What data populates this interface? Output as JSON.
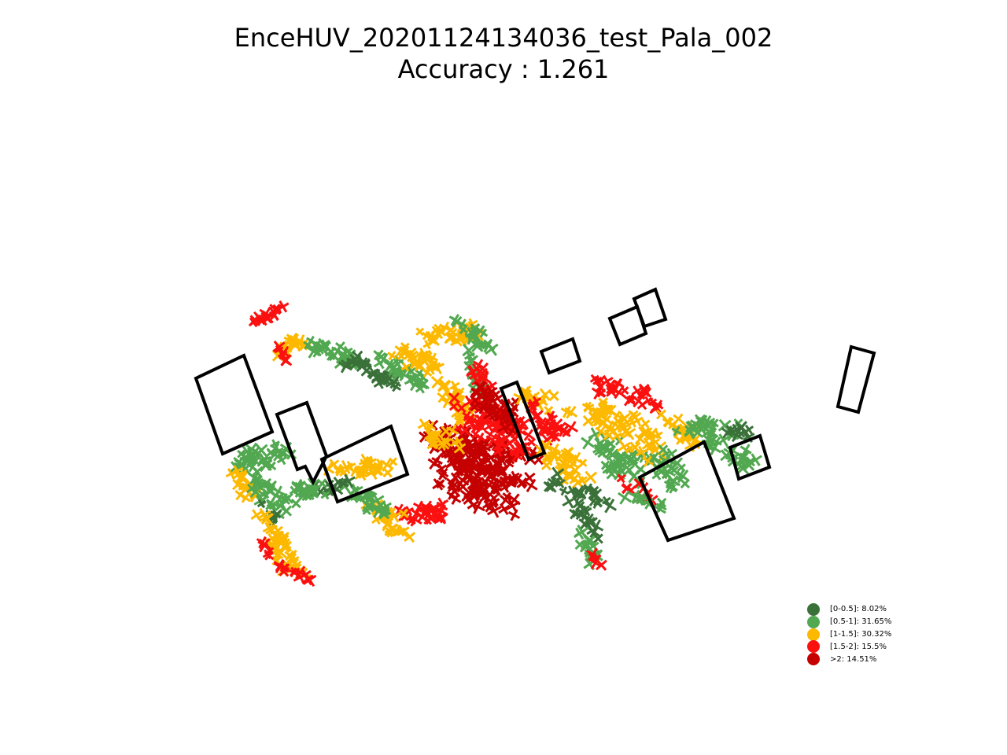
{
  "chart_data": {
    "type": "scatter",
    "title": "EnceHUV_20201124134036_test_Pala_002",
    "subtitle": "Accuracy : 1.261",
    "accuracy": 1.261,
    "legend_position": "lower-right",
    "axes_visible": false,
    "marker": "x",
    "categories": [
      {
        "label": "[0-0.5]: 8.02%",
        "range": "[0-0.5]",
        "percent": 8.02,
        "color": "#3a7139"
      },
      {
        "label": "[0.5-1]: 31.65%",
        "range": "[0.5-1]",
        "percent": 31.65,
        "color": "#52a850"
      },
      {
        "label": "[1-1.5]: 30.32%",
        "range": "[1-1.5]",
        "percent": 30.32,
        "color": "#fdb900"
      },
      {
        "label": "[1.5-2]: 15.5%",
        "range": "[1.5-2]",
        "percent": 15.5,
        "color": "#fb1010"
      },
      {
        "label": ">2: 14.51%",
        "range": ">2",
        "percent": 14.51,
        "color": "#c50000"
      }
    ]
  }
}
